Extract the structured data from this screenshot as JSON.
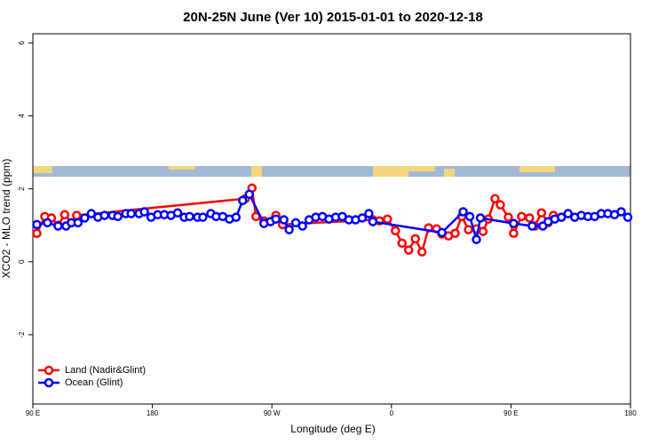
{
  "chart_data": {
    "type": "line",
    "title": "20N-25N June (Ver 10)   2015-01-01 to 2020-12-18",
    "xlabel": "Longitude (deg E)",
    "ylabel": "XCO2 - MLO trend (ppm)",
    "xlim": [
      90,
      540
    ],
    "ylim": [
      -3.9,
      6.25
    ],
    "xticks": [
      {
        "value": 90,
        "label": "90 E"
      },
      180,
      {
        "value": 270,
        "label": "90 W"
      },
      {
        "value": 360,
        "label": "0"
      },
      {
        "value": 450,
        "label": "90 E"
      },
      {
        "value": 540,
        "label": "180"
      }
    ],
    "yticks": [
      -2,
      0,
      2,
      4,
      6
    ],
    "legend": "bottom-left",
    "series": [
      {
        "name": "Land (Nadir&Glint)",
        "color": "#ff0000",
        "x": [
          93,
          99,
          104,
          109,
          114,
          119,
          123,
          250,
          255,
          258,
          264,
          273,
          278,
          346,
          351,
          357,
          363,
          368,
          373,
          378,
          383,
          388,
          394,
          398,
          403,
          408,
          413,
          418,
          424,
          429,
          433,
          438,
          442,
          448,
          452,
          458,
          464,
          468,
          473,
          478,
          482
        ],
        "values": [
          0.78,
          1.24,
          1.2,
          1.0,
          1.29,
          1.07,
          1.27,
          1.73,
          2.02,
          1.24,
          1.12,
          1.27,
          1.02,
          1.15,
          1.12,
          1.17,
          0.85,
          0.51,
          0.32,
          0.63,
          0.27,
          0.93,
          0.9,
          0.76,
          0.71,
          0.78,
          1.24,
          0.88,
          0.9,
          0.83,
          1.17,
          1.73,
          1.56,
          1.22,
          0.78,
          1.24,
          1.2,
          0.98,
          1.34,
          1.07,
          1.27
        ]
      },
      {
        "name": "Ocean (Glint)",
        "color": "#0000ff",
        "x": [
          93,
          101,
          109,
          115,
          119,
          124,
          129,
          134,
          139,
          144,
          150,
          154,
          160,
          164,
          170,
          174,
          179,
          184,
          189,
          194,
          199,
          204,
          208,
          214,
          218,
          224,
          228,
          233,
          238,
          243,
          248,
          253,
          264,
          269,
          273,
          279,
          283,
          288,
          293,
          298,
          303,
          308,
          313,
          318,
          323,
          328,
          333,
          338,
          343,
          346,
          398,
          414,
          419,
          424,
          427,
          452,
          466,
          474,
          478,
          483,
          488,
          493,
          498,
          503,
          508,
          513,
          518,
          523,
          528,
          533,
          538
        ],
        "values": [
          1.02,
          1.07,
          0.98,
          0.98,
          1.07,
          1.07,
          1.2,
          1.32,
          1.22,
          1.27,
          1.27,
          1.24,
          1.32,
          1.32,
          1.32,
          1.37,
          1.22,
          1.29,
          1.29,
          1.27,
          1.34,
          1.22,
          1.24,
          1.22,
          1.22,
          1.32,
          1.24,
          1.24,
          1.17,
          1.22,
          1.68,
          1.85,
          1.05,
          1.1,
          1.17,
          1.15,
          0.88,
          1.07,
          0.98,
          1.15,
          1.22,
          1.24,
          1.17,
          1.22,
          1.24,
          1.15,
          1.15,
          1.2,
          1.32,
          1.1,
          0.8,
          1.37,
          1.24,
          0.61,
          1.2,
          1.05,
          0.98,
          0.98,
          1.1,
          1.17,
          1.22,
          1.32,
          1.22,
          1.27,
          1.24,
          1.24,
          1.32,
          1.32,
          1.29,
          1.37,
          1.22
        ]
      }
    ]
  }
}
